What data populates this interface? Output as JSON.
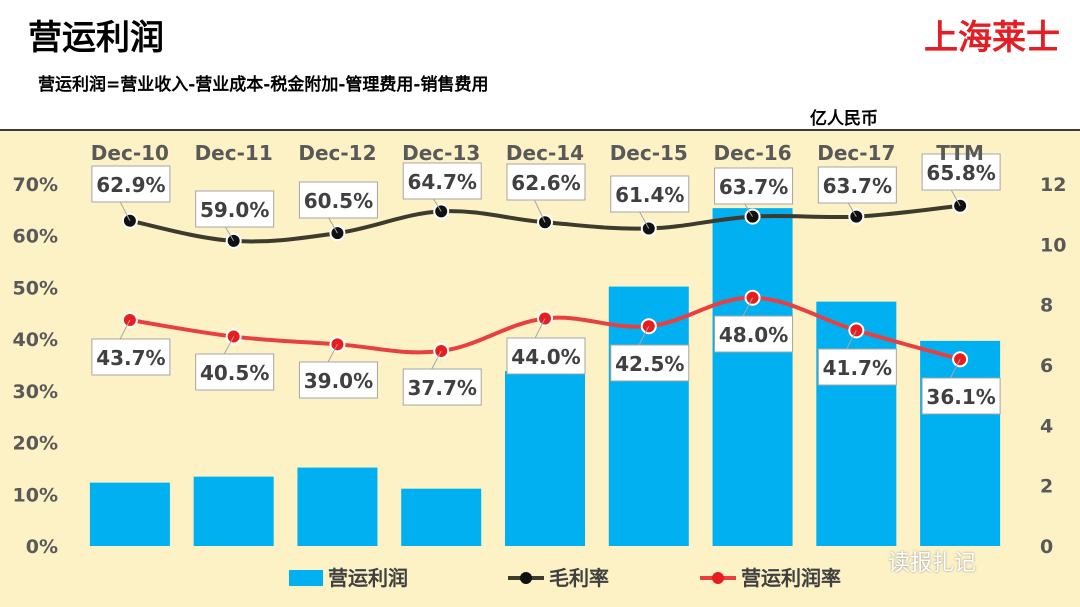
{
  "header": {
    "title": "营运利润",
    "brand": "上海莱士",
    "formula": "营运利润=营业收入-营业成本-税金附加-管理费用-销售费用",
    "unit": "亿人民币"
  },
  "watermark": "读报扎记",
  "colors": {
    "bar": "#00b0f0",
    "gross_line": "#3d3a2e",
    "op_line": "#e84040",
    "op_dot": "#e81e1e",
    "plot_bg": "#fdf2c6"
  },
  "chart_data": {
    "type": "bar+line",
    "categories": [
      "Dec-10",
      "Dec-11",
      "Dec-12",
      "Dec-13",
      "Dec-14",
      "Dec-15",
      "Dec-16",
      "Dec-17",
      "TTM"
    ],
    "series": [
      {
        "name": "营运利润",
        "type": "bar",
        "axis": "right",
        "values": [
          2.1,
          2.3,
          2.6,
          1.9,
          5.8,
          8.6,
          11.2,
          8.1,
          6.8
        ]
      },
      {
        "name": "毛利率",
        "type": "line",
        "axis": "left",
        "values": [
          62.9,
          59.0,
          60.5,
          64.7,
          62.6,
          61.4,
          63.7,
          63.7,
          65.8
        ],
        "labels": [
          "62.9%",
          "59.0%",
          "60.5%",
          "64.7%",
          "62.6%",
          "61.4%",
          "63.7%",
          "63.7%",
          "65.8%"
        ]
      },
      {
        "name": "营运利润率",
        "type": "line",
        "axis": "left",
        "values": [
          43.7,
          40.5,
          39.0,
          37.7,
          44.0,
          42.5,
          48.0,
          41.7,
          36.1
        ],
        "labels": [
          "43.7%",
          "40.5%",
          "39.0%",
          "37.7%",
          "44.0%",
          "42.5%",
          "48.0%",
          "41.7%",
          "36.1%"
        ]
      }
    ],
    "y_left": {
      "range": [
        0,
        70
      ],
      "ticks": [
        0,
        10,
        20,
        30,
        40,
        50,
        60,
        70
      ],
      "tick_labels": [
        "0%",
        "10%",
        "20%",
        "30%",
        "40%",
        "50%",
        "60%",
        "70%"
      ]
    },
    "y_right": {
      "range": [
        0,
        12
      ],
      "ticks": [
        0,
        2,
        4,
        6,
        8,
        10,
        12
      ],
      "tick_labels": [
        "0",
        "2",
        "4",
        "6",
        "8",
        "10",
        "12"
      ]
    },
    "legend": [
      "营运利润",
      "毛利率",
      "营运利润率"
    ],
    "legend_position": "bottom",
    "grid": false
  }
}
